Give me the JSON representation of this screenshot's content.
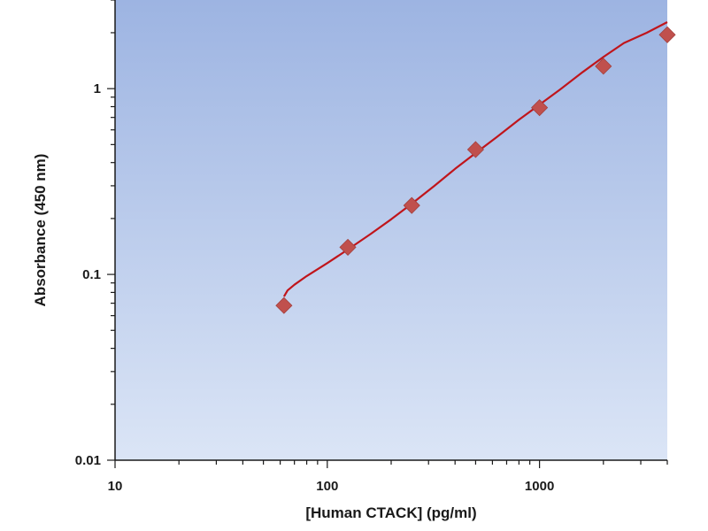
{
  "chart_data": {
    "type": "scatter",
    "title": "",
    "xlabel": "[Human CTACK] (pg/ml)",
    "ylabel": "Absorbance (450 nm)",
    "x_scale": "log",
    "y_scale": "log",
    "xlim": [
      10,
      4000
    ],
    "ylim": [
      0.01,
      3
    ],
    "x_ticks": [
      10,
      100,
      1000
    ],
    "x_tick_labels": [
      "10",
      "100",
      "1000"
    ],
    "y_ticks": [
      0.01,
      0.1,
      1
    ],
    "y_tick_labels": [
      "0.01",
      "0.1",
      "1"
    ],
    "grid": false,
    "legend": "none",
    "background": "vertical gradient, blue (top) to light blue (bottom)",
    "marker": "diamond",
    "marker_color": "#c0504d",
    "series": [
      {
        "x": [
          62.5,
          125,
          250,
          500,
          1000,
          2000,
          4000
        ],
        "y": [
          0.068,
          0.14,
          0.235,
          0.47,
          0.79,
          1.32,
          1.95
        ]
      }
    ],
    "fit_line": {
      "color": "#c0151b",
      "x": [
        62.5,
        65,
        70,
        80,
        100,
        125,
        160,
        200,
        250,
        320,
        400,
        500,
        630,
        800,
        1000,
        1250,
        1600,
        2000,
        2500,
        3200,
        4000
      ],
      "y": [
        0.076,
        0.082,
        0.088,
        0.098,
        0.115,
        0.136,
        0.165,
        0.198,
        0.24,
        0.3,
        0.37,
        0.45,
        0.55,
        0.68,
        0.82,
        0.99,
        1.23,
        1.48,
        1.76,
        2.0,
        2.28
      ]
    }
  }
}
